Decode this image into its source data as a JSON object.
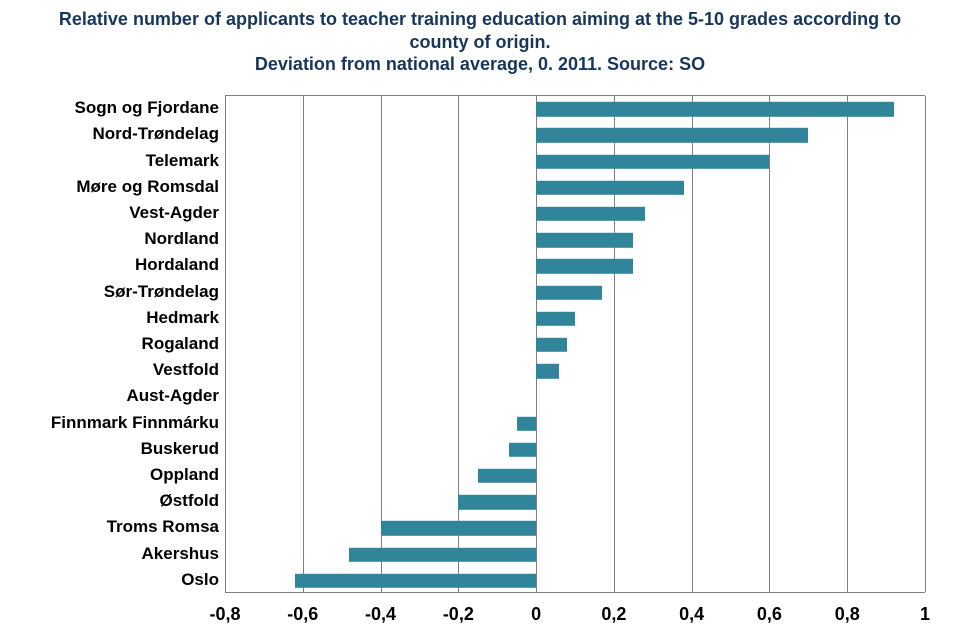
{
  "title_line1": "Relative number of applicants to teacher training education aiming at the 5-10 grades according to county of origin.",
  "title_line2": "Deviation from national average, 0. 2011. Source: SO",
  "title_fontsize": 18,
  "title_color": "#17365d",
  "chart": {
    "type": "bar-horizontal",
    "xmin": -0.8,
    "xmax": 1.0,
    "xticks": [
      -0.8,
      -0.6,
      -0.4,
      -0.2,
      0,
      0.2,
      0.4,
      0.6,
      0.8,
      1.0
    ],
    "xtick_labels": [
      "-0,8",
      "-0,6",
      "-0,4",
      "-0,2",
      "0",
      "0,2",
      "0,4",
      "0,6",
      "0,8",
      "1"
    ],
    "tick_fontsize": 18,
    "grid_color": "#808080",
    "background_color": "#ffffff",
    "bar_color": "#31859b",
    "bar_height_ratio": 0.55,
    "label_fontsize": 17,
    "label_color": "#000000",
    "categories": [
      "Sogn og Fjordane",
      "Nord-Trøndelag",
      "Telemark",
      "Møre og Romsdal",
      "Vest-Agder",
      "Nordland",
      "Hordaland",
      "Sør-Trøndelag",
      "Hedmark",
      "Rogaland",
      "Vestfold",
      "Aust-Agder",
      "Finnmark Finnmárku",
      "Buskerud",
      "Oppland",
      "Østfold",
      "Troms Romsa",
      "Akershus",
      "Oslo"
    ],
    "values": [
      0.92,
      0.7,
      0.6,
      0.38,
      0.28,
      0.25,
      0.25,
      0.17,
      0.1,
      0.08,
      0.06,
      0.0,
      -0.05,
      -0.07,
      -0.15,
      -0.2,
      -0.4,
      -0.48,
      -0.62
    ]
  }
}
